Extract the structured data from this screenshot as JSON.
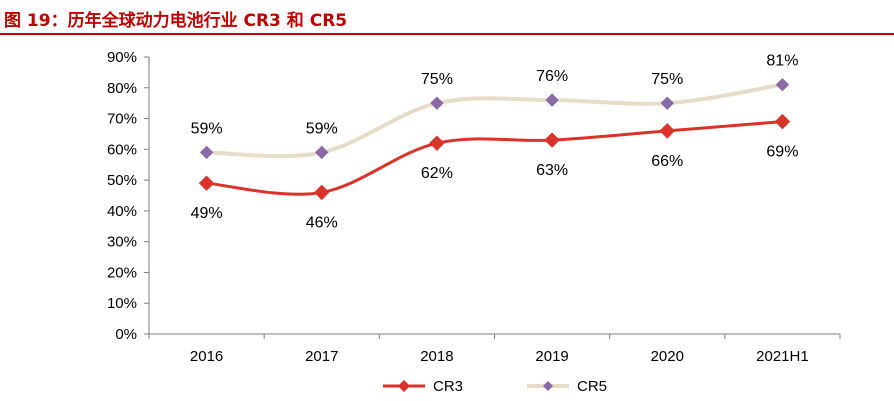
{
  "figure": {
    "title": "图 19：历年全球动力电池行业 CR3 和 CR5",
    "title_color": "#c00000"
  },
  "chart_data": {
    "type": "line",
    "title": "",
    "xlabel": "",
    "ylabel": "",
    "categories": [
      "2016",
      "2017",
      "2018",
      "2019",
      "2020",
      "2021H1"
    ],
    "ylim": [
      0,
      90
    ],
    "yticks": [
      0,
      10,
      20,
      30,
      40,
      50,
      60,
      70,
      80,
      90
    ],
    "ytick_labels": [
      "0%",
      "10%",
      "20%",
      "30%",
      "40%",
      "50%",
      "60%",
      "70%",
      "80%",
      "90%"
    ],
    "grid": false,
    "legend_position": "bottom",
    "series": [
      {
        "name": "CR3",
        "values": [
          49,
          46,
          62,
          63,
          66,
          69
        ],
        "labels": [
          "49%",
          "46%",
          "62%",
          "63%",
          "66%",
          "69%"
        ],
        "label_position": "below",
        "color": "#d9332a",
        "marker": "diamond"
      },
      {
        "name": "CR5",
        "values": [
          59,
          59,
          75,
          76,
          75,
          81
        ],
        "labels": [
          "59%",
          "59%",
          "75%",
          "76%",
          "75%",
          "81%"
        ],
        "label_position": "above",
        "color": "#e6dcc8",
        "marker_color": "#8a6aa6",
        "marker": "diamond"
      }
    ]
  }
}
